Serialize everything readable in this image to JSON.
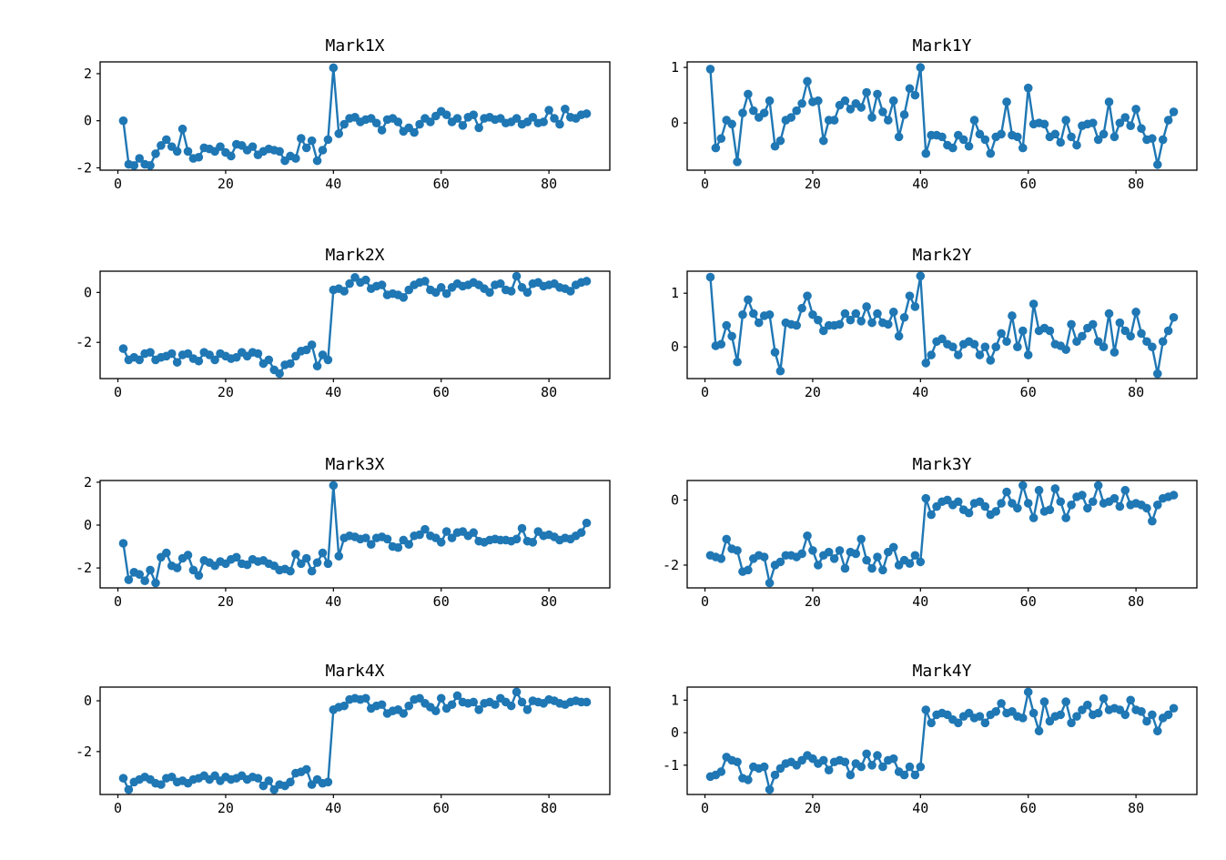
{
  "figure": {
    "background": "#ffffff",
    "rows": 4,
    "cols": 2,
    "accent_color": "#1f77b4"
  },
  "chart_data": [
    {
      "type": "line",
      "title": "Mark1X",
      "xlabel": "",
      "ylabel": "",
      "color": "#1f77b4",
      "marker": "circle",
      "grid": false,
      "x_start": 1,
      "xlim": [
        -3.3,
        91.3
      ],
      "ylim": [
        -2.1,
        2.5
      ],
      "xticks": [
        0,
        20,
        40,
        60,
        80
      ],
      "yticks": [
        -2,
        0,
        2
      ],
      "values": [
        0.0,
        -1.85,
        -1.9,
        -1.6,
        -1.85,
        -1.9,
        -1.4,
        -1.05,
        -0.8,
        -1.1,
        -1.3,
        -0.35,
        -1.3,
        -1.6,
        -1.55,
        -1.15,
        -1.2,
        -1.3,
        -1.1,
        -1.35,
        -1.5,
        -1.0,
        -1.05,
        -1.25,
        -1.1,
        -1.45,
        -1.3,
        -1.2,
        -1.25,
        -1.3,
        -1.7,
        -1.5,
        -1.6,
        -0.75,
        -1.15,
        -0.85,
        -1.7,
        -1.25,
        -0.8,
        2.25,
        -0.55,
        -0.15,
        0.1,
        0.15,
        -0.05,
        0.05,
        0.1,
        -0.1,
        -0.4,
        0.05,
        0.1,
        -0.05,
        -0.45,
        -0.3,
        -0.5,
        -0.15,
        0.1,
        -0.05,
        0.2,
        0.4,
        0.25,
        -0.05,
        0.1,
        -0.2,
        0.15,
        0.25,
        -0.3,
        0.1,
        0.15,
        0.05,
        0.1,
        -0.1,
        -0.05,
        0.1,
        -0.15,
        -0.05,
        0.15,
        -0.1,
        -0.05,
        0.45,
        0.1,
        -0.15,
        0.5,
        0.15,
        0.1,
        0.25,
        0.3
      ]
    },
    {
      "type": "line",
      "title": "Mark1Y",
      "xlabel": "",
      "ylabel": "",
      "color": "#1f77b4",
      "marker": "circle",
      "grid": false,
      "x_start": 1,
      "xlim": [
        -3.3,
        91.3
      ],
      "ylim": [
        -0.85,
        1.1
      ],
      "xticks": [
        0,
        20,
        40,
        60,
        80
      ],
      "yticks": [
        0,
        1
      ],
      "values": [
        0.97,
        -0.45,
        -0.28,
        0.05,
        -0.02,
        -0.7,
        0.18,
        0.52,
        0.22,
        0.1,
        0.18,
        0.4,
        -0.42,
        -0.32,
        0.05,
        0.1,
        0.22,
        0.35,
        0.75,
        0.38,
        0.4,
        -0.32,
        0.05,
        0.05,
        0.32,
        0.4,
        0.25,
        0.35,
        0.28,
        0.55,
        0.1,
        0.52,
        0.2,
        0.05,
        0.4,
        -0.25,
        0.15,
        0.62,
        0.5,
        1.0,
        -0.55,
        -0.22,
        -0.22,
        -0.25,
        -0.4,
        -0.45,
        -0.22,
        -0.3,
        -0.42,
        0.05,
        -0.2,
        -0.3,
        -0.55,
        -0.25,
        -0.2,
        0.38,
        -0.22,
        -0.25,
        -0.45,
        0.63,
        -0.02,
        0.0,
        -0.02,
        -0.25,
        -0.2,
        -0.35,
        0.05,
        -0.25,
        -0.4,
        -0.05,
        -0.02,
        0.0,
        -0.3,
        -0.2,
        0.38,
        -0.25,
        0.0,
        0.1,
        -0.05,
        0.25,
        -0.1,
        -0.3,
        -0.28,
        -0.75,
        -0.3,
        0.05,
        0.2
      ]
    },
    {
      "type": "line",
      "title": "Mark2X",
      "xlabel": "",
      "ylabel": "",
      "color": "#1f77b4",
      "marker": "circle",
      "grid": false,
      "x_start": 1,
      "xlim": [
        -3.3,
        91.3
      ],
      "ylim": [
        -3.45,
        0.85
      ],
      "xticks": [
        0,
        20,
        40,
        60,
        80
      ],
      "yticks": [
        -2,
        0
      ],
      "values": [
        -2.25,
        -2.7,
        -2.6,
        -2.7,
        -2.45,
        -2.4,
        -2.7,
        -2.6,
        -2.55,
        -2.45,
        -2.8,
        -2.5,
        -2.45,
        -2.65,
        -2.75,
        -2.4,
        -2.5,
        -2.7,
        -2.45,
        -2.55,
        -2.65,
        -2.6,
        -2.4,
        -2.55,
        -2.4,
        -2.45,
        -2.85,
        -2.7,
        -3.1,
        -3.25,
        -2.9,
        -2.85,
        -2.55,
        -2.35,
        -2.3,
        -2.1,
        -2.95,
        -2.5,
        -2.7,
        0.1,
        0.15,
        0.05,
        0.35,
        0.6,
        0.4,
        0.5,
        0.15,
        0.25,
        0.3,
        -0.1,
        -0.05,
        -0.1,
        -0.2,
        0.1,
        0.3,
        0.4,
        0.45,
        0.1,
        0.0,
        0.2,
        -0.05,
        0.2,
        0.35,
        0.25,
        0.3,
        0.4,
        0.3,
        0.15,
        0.0,
        0.3,
        0.35,
        0.1,
        0.05,
        0.65,
        0.2,
        0.0,
        0.35,
        0.4,
        0.25,
        0.3,
        0.35,
        0.2,
        0.15,
        0.05,
        0.3,
        0.4,
        0.45
      ]
    },
    {
      "type": "line",
      "title": "Mark2Y",
      "xlabel": "",
      "ylabel": "",
      "color": "#1f77b4",
      "marker": "circle",
      "grid": false,
      "x_start": 1,
      "xlim": [
        -3.3,
        91.3
      ],
      "ylim": [
        -0.59,
        1.41
      ],
      "xticks": [
        0,
        20,
        40,
        60,
        80
      ],
      "yticks": [
        0,
        1
      ],
      "values": [
        1.3,
        0.02,
        0.05,
        0.4,
        0.2,
        -0.28,
        0.6,
        0.88,
        0.62,
        0.45,
        0.58,
        0.6,
        -0.1,
        -0.45,
        0.45,
        0.42,
        0.4,
        0.72,
        0.95,
        0.6,
        0.5,
        0.3,
        0.4,
        0.4,
        0.42,
        0.62,
        0.5,
        0.62,
        0.48,
        0.75,
        0.45,
        0.62,
        0.45,
        0.42,
        0.65,
        0.2,
        0.55,
        0.95,
        0.75,
        1.32,
        -0.3,
        -0.15,
        0.1,
        0.15,
        0.05,
        0.0,
        -0.15,
        0.05,
        0.1,
        0.05,
        -0.15,
        0.0,
        -0.25,
        0.0,
        0.25,
        0.1,
        0.58,
        0.0,
        0.3,
        -0.15,
        0.8,
        0.3,
        0.35,
        0.3,
        0.05,
        0.02,
        -0.05,
        0.42,
        0.1,
        0.2,
        0.35,
        0.42,
        0.1,
        0.0,
        0.62,
        -0.1,
        0.45,
        0.3,
        0.2,
        0.65,
        0.25,
        0.1,
        0.0,
        -0.5,
        0.1,
        0.3,
        0.55
      ]
    },
    {
      "type": "line",
      "title": "Mark3X",
      "xlabel": "",
      "ylabel": "",
      "color": "#1f77b4",
      "marker": "circle",
      "grid": false,
      "x_start": 1,
      "xlim": [
        -3.3,
        91.3
      ],
      "ylim": [
        -2.93,
        2.08
      ],
      "xticks": [
        0,
        20,
        40,
        60,
        80
      ],
      "yticks": [
        -2,
        0,
        2
      ],
      "values": [
        -0.85,
        -2.55,
        -2.2,
        -2.3,
        -2.6,
        -2.1,
        -2.7,
        -1.5,
        -1.3,
        -1.9,
        -2.0,
        -1.55,
        -1.4,
        -2.1,
        -2.35,
        -1.65,
        -1.75,
        -1.9,
        -1.7,
        -1.8,
        -1.6,
        -1.5,
        -1.8,
        -1.85,
        -1.6,
        -1.7,
        -1.65,
        -1.8,
        -1.9,
        -2.1,
        -2.05,
        -2.15,
        -1.35,
        -1.8,
        -1.55,
        -2.15,
        -1.75,
        -1.3,
        -1.8,
        1.85,
        -1.45,
        -0.6,
        -0.5,
        -0.55,
        -0.65,
        -0.6,
        -0.9,
        -0.6,
        -0.55,
        -0.65,
        -1.0,
        -1.05,
        -0.7,
        -0.9,
        -0.5,
        -0.45,
        -0.2,
        -0.5,
        -0.6,
        -0.8,
        -0.3,
        -0.6,
        -0.35,
        -0.3,
        -0.5,
        -0.35,
        -0.75,
        -0.8,
        -0.7,
        -0.65,
        -0.7,
        -0.7,
        -0.75,
        -0.65,
        -0.15,
        -0.75,
        -0.8,
        -0.3,
        -0.5,
        -0.45,
        -0.55,
        -0.7,
        -0.6,
        -0.65,
        -0.5,
        -0.35,
        0.1
      ]
    },
    {
      "type": "line",
      "title": "Mark3Y",
      "xlabel": "",
      "ylabel": "",
      "color": "#1f77b4",
      "marker": "circle",
      "grid": false,
      "x_start": 1,
      "xlim": [
        -3.3,
        91.3
      ],
      "ylim": [
        -2.7,
        0.6
      ],
      "xticks": [
        0,
        20,
        40,
        60,
        80
      ],
      "yticks": [
        -2,
        0
      ],
      "values": [
        -1.7,
        -1.75,
        -1.8,
        -1.2,
        -1.5,
        -1.55,
        -2.2,
        -2.15,
        -1.8,
        -1.7,
        -1.75,
        -2.55,
        -2.0,
        -1.9,
        -1.7,
        -1.7,
        -1.75,
        -1.65,
        -1.1,
        -1.55,
        -2.0,
        -1.7,
        -1.6,
        -1.8,
        -1.55,
        -2.1,
        -1.6,
        -1.65,
        -1.2,
        -1.85,
        -2.1,
        -1.75,
        -2.15,
        -1.6,
        -1.45,
        -2.0,
        -1.85,
        -1.95,
        -1.7,
        -1.9,
        0.05,
        -0.45,
        -0.2,
        -0.05,
        0.0,
        -0.15,
        -0.05,
        -0.3,
        -0.4,
        -0.1,
        -0.05,
        -0.2,
        -0.45,
        -0.35,
        -0.1,
        0.25,
        -0.1,
        -0.25,
        0.45,
        -0.1,
        -0.55,
        0.3,
        -0.35,
        -0.3,
        0.35,
        -0.05,
        -0.55,
        -0.15,
        0.1,
        0.15,
        -0.25,
        -0.05,
        0.45,
        -0.1,
        -0.05,
        0.05,
        -0.2,
        0.3,
        -0.15,
        -0.1,
        -0.15,
        -0.25,
        -0.65,
        -0.15,
        0.05,
        0.1,
        0.15
      ]
    },
    {
      "type": "line",
      "title": "Mark4X",
      "xlabel": "",
      "ylabel": "",
      "color": "#1f77b4",
      "marker": "circle",
      "grid": false,
      "x_start": 1,
      "xlim": [
        -3.3,
        91.3
      ],
      "ylim": [
        -3.69,
        0.54
      ],
      "xticks": [
        0,
        20,
        40,
        60,
        80
      ],
      "yticks": [
        -2,
        0
      ],
      "values": [
        -3.05,
        -3.5,
        -3.2,
        -3.1,
        -3.0,
        -3.1,
        -3.25,
        -3.3,
        -3.05,
        -3.0,
        -3.2,
        -3.15,
        -3.25,
        -3.1,
        -3.05,
        -2.95,
        -3.1,
        -2.95,
        -3.15,
        -3.0,
        -3.1,
        -3.05,
        -2.95,
        -3.1,
        -3.0,
        -3.05,
        -3.35,
        -3.15,
        -3.5,
        -3.3,
        -3.35,
        -3.2,
        -2.85,
        -2.8,
        -2.7,
        -3.3,
        -3.1,
        -3.25,
        -3.2,
        -0.35,
        -0.25,
        -0.2,
        0.05,
        0.1,
        0.05,
        0.1,
        -0.3,
        -0.2,
        -0.15,
        -0.5,
        -0.4,
        -0.35,
        -0.5,
        -0.2,
        0.05,
        0.1,
        -0.1,
        -0.25,
        -0.4,
        0.1,
        -0.3,
        -0.15,
        0.2,
        -0.05,
        -0.1,
        -0.05,
        -0.35,
        -0.1,
        -0.05,
        -0.15,
        0.1,
        -0.05,
        -0.2,
        0.35,
        -0.05,
        -0.35,
        0.0,
        -0.05,
        -0.1,
        0.05,
        0.0,
        -0.1,
        -0.15,
        -0.05,
        0.0,
        -0.05,
        -0.05
      ]
    },
    {
      "type": "line",
      "title": "Mark4Y",
      "xlabel": "",
      "ylabel": "",
      "color": "#1f77b4",
      "marker": "circle",
      "grid": false,
      "x_start": 1,
      "xlim": [
        -3.3,
        91.3
      ],
      "ylim": [
        -1.9,
        1.4
      ],
      "xticks": [
        0,
        20,
        40,
        60,
        80
      ],
      "yticks": [
        -1,
        0,
        1
      ],
      "values": [
        -1.35,
        -1.3,
        -1.2,
        -0.75,
        -0.85,
        -0.9,
        -1.4,
        -1.45,
        -1.05,
        -1.1,
        -1.05,
        -1.75,
        -1.3,
        -1.1,
        -0.95,
        -0.9,
        -1.0,
        -0.85,
        -0.7,
        -0.8,
        -0.95,
        -0.85,
        -1.15,
        -0.9,
        -0.85,
        -0.9,
        -1.3,
        -0.95,
        -1.05,
        -0.65,
        -1.0,
        -0.7,
        -1.05,
        -0.85,
        -0.8,
        -1.2,
        -1.3,
        -1.05,
        -1.3,
        -1.05,
        0.7,
        0.3,
        0.55,
        0.6,
        0.55,
        0.4,
        0.3,
        0.5,
        0.6,
        0.45,
        0.5,
        0.3,
        0.55,
        0.65,
        0.9,
        0.6,
        0.65,
        0.5,
        0.45,
        1.25,
        0.6,
        0.05,
        0.95,
        0.35,
        0.5,
        0.55,
        0.95,
        0.3,
        0.5,
        0.7,
        0.85,
        0.55,
        0.6,
        1.05,
        0.7,
        0.75,
        0.7,
        0.55,
        1.0,
        0.7,
        0.65,
        0.35,
        0.55,
        0.05,
        0.45,
        0.55,
        0.75
      ]
    }
  ]
}
